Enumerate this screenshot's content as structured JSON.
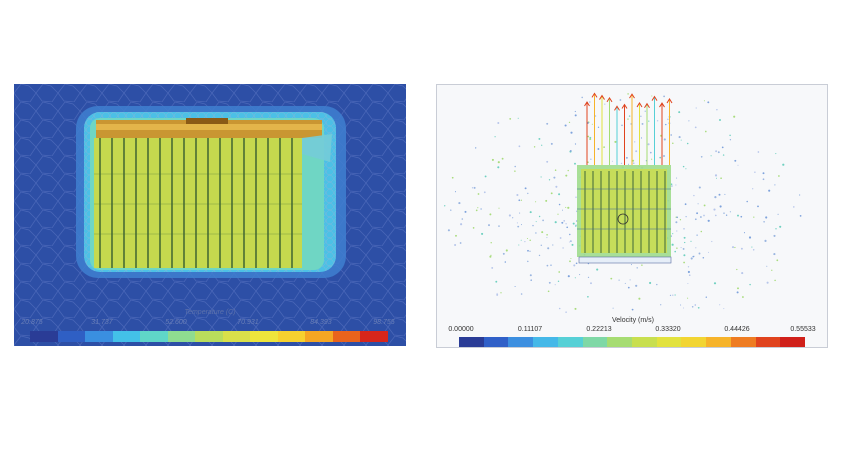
{
  "temperature_plot": {
    "title": "Temperature (C)",
    "ticks": [
      "20.875",
      "31.737",
      "52.600",
      "70.931",
      "84.393",
      "98.755"
    ],
    "colors": [
      "#2a3c96",
      "#2f5fc4",
      "#3a8fe0",
      "#43c1e8",
      "#5fd6c8",
      "#8fdc90",
      "#b9dd5c",
      "#d9e04a",
      "#eee53c",
      "#f6d12f",
      "#f5a623",
      "#e9631c",
      "#d7261b"
    ]
  },
  "velocity_plot": {
    "title": "Velocity (m/s)",
    "ticks": [
      "0.00000",
      "0.11107",
      "0.22213",
      "0.33320",
      "0.44426",
      "0.55533"
    ],
    "colors": [
      "#2a3c96",
      "#3060c8",
      "#3c8fe0",
      "#45b8e8",
      "#56d0d6",
      "#7fd8a6",
      "#a6dc72",
      "#c8df4f",
      "#e2e23e",
      "#f2d532",
      "#f6b32a",
      "#ee7c22",
      "#e0431e",
      "#d0201a"
    ]
  }
}
